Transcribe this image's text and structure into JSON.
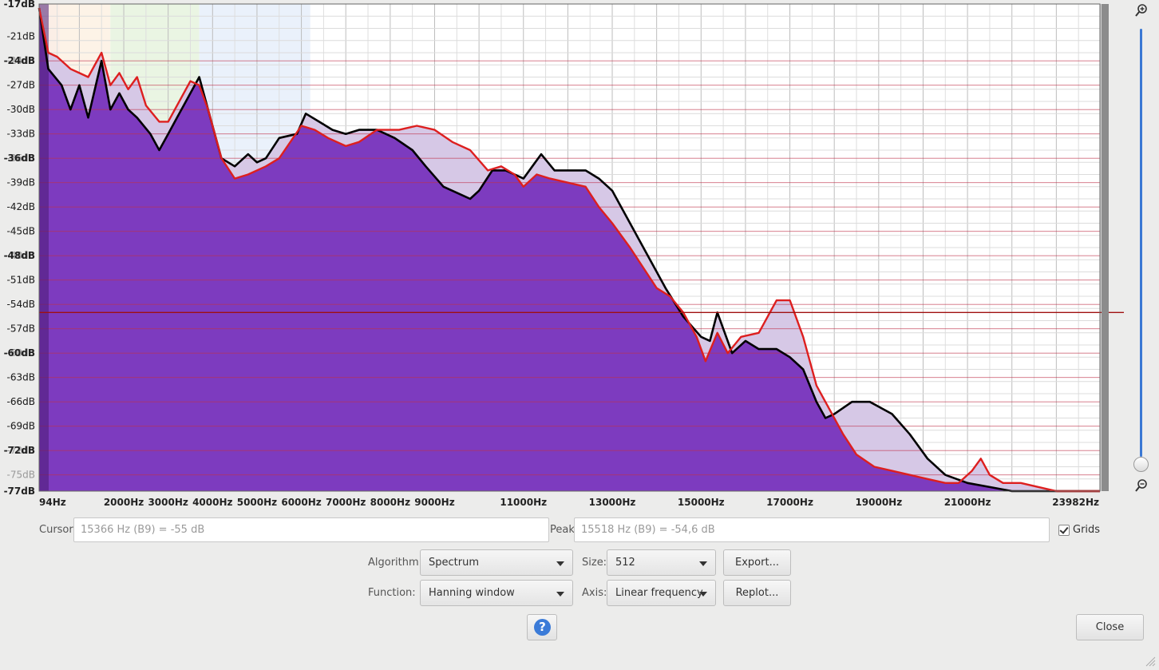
{
  "chart_data": {
    "type": "area",
    "title": "",
    "xlabel": "",
    "ylabel": "",
    "x_range_hz": [
      94,
      23982
    ],
    "y_range_db": [
      -77,
      -17
    ],
    "x_tick_labels": [
      {
        "hz": 94,
        "label": "94Hz"
      },
      {
        "hz": 2000,
        "label": "2000Hz"
      },
      {
        "hz": 3000,
        "label": "3000Hz"
      },
      {
        "hz": 4000,
        "label": "4000Hz"
      },
      {
        "hz": 5000,
        "label": "5000Hz"
      },
      {
        "hz": 6000,
        "label": "6000Hz"
      },
      {
        "hz": 7000,
        "label": "7000Hz"
      },
      {
        "hz": 8000,
        "label": "8000Hz"
      },
      {
        "hz": 9000,
        "label": "9000Hz"
      },
      {
        "hz": 11000,
        "label": "11000Hz"
      },
      {
        "hz": 13000,
        "label": "13000Hz"
      },
      {
        "hz": 15000,
        "label": "15000Hz"
      },
      {
        "hz": 17000,
        "label": "17000Hz"
      },
      {
        "hz": 19000,
        "label": "19000Hz"
      },
      {
        "hz": 21000,
        "label": "21000Hz"
      },
      {
        "hz": 23982,
        "label": "23982Hz"
      }
    ],
    "y_tick_labels": [
      {
        "db": -17,
        "label": "-17dB",
        "style": "bold"
      },
      {
        "db": -21,
        "label": "-21dB",
        "style": "minor"
      },
      {
        "db": -21,
        "label": "-21dB",
        "style": "normal"
      },
      {
        "db": -24,
        "label": "-24dB",
        "style": "minor"
      },
      {
        "db": -24,
        "label": "-24dB",
        "style": "bold"
      },
      {
        "db": -27,
        "label": "-27dB",
        "style": "minor"
      },
      {
        "db": -27,
        "label": "-27dB",
        "style": "normal"
      },
      {
        "db": -30,
        "label": "-30dB",
        "style": "minor"
      },
      {
        "db": -30,
        "label": "-30dB",
        "style": "normal"
      },
      {
        "db": -33,
        "label": "-33dB",
        "style": "minor"
      },
      {
        "db": -33,
        "label": "-33dB",
        "style": "normal"
      },
      {
        "db": -36,
        "label": "-36dB",
        "style": "minor"
      },
      {
        "db": -36,
        "label": "-36dB",
        "style": "bold"
      },
      {
        "db": -39,
        "label": "-39dB",
        "style": "minor"
      },
      {
        "db": -39,
        "label": "-39dB",
        "style": "normal"
      },
      {
        "db": -42,
        "label": "-42dB",
        "style": "minor"
      },
      {
        "db": -42,
        "label": "-42dB",
        "style": "normal"
      },
      {
        "db": -45,
        "label": "-45dB",
        "style": "minor"
      },
      {
        "db": -45,
        "label": "-45dB",
        "style": "normal"
      },
      {
        "db": -48,
        "label": "-48dB",
        "style": "minor"
      },
      {
        "db": -48,
        "label": "-48dB",
        "style": "bold"
      },
      {
        "db": -51,
        "label": "-51dB",
        "style": "minor"
      },
      {
        "db": -51,
        "label": "-51dB",
        "style": "normal"
      },
      {
        "db": -54,
        "label": "-54dB",
        "style": "minor"
      },
      {
        "db": -54,
        "label": "-54dB",
        "style": "normal"
      },
      {
        "db": -57,
        "label": "-57dB",
        "style": "minor"
      },
      {
        "db": -57,
        "label": "-57dB",
        "style": "normal"
      },
      {
        "db": -60,
        "label": "-60dB",
        "style": "minor"
      },
      {
        "db": -60,
        "label": "-60dB",
        "style": "bold"
      },
      {
        "db": -63,
        "label": "-63dB",
        "style": "minor"
      },
      {
        "db": -63,
        "label": "-63dB",
        "style": "normal"
      },
      {
        "db": -66,
        "label": "-66dB",
        "style": "minor"
      },
      {
        "db": -66,
        "label": "-66dB",
        "style": "normal"
      },
      {
        "db": -69,
        "label": "-69dB",
        "style": "minor"
      },
      {
        "db": -69,
        "label": "-69dB",
        "style": "normal"
      },
      {
        "db": -72,
        "label": "-72dB",
        "style": "minor"
      },
      {
        "db": -72,
        "label": "-72dB",
        "style": "bold"
      },
      {
        "db": -75,
        "label": "-75dB",
        "style": "minor"
      },
      {
        "db": -77,
        "label": "-77dB",
        "style": "bold"
      }
    ],
    "grid": true,
    "cursor_hz": 15366,
    "cursor_db": -55,
    "series": [
      {
        "color": "#000000",
        "points": [
          [
            94,
            -17.5
          ],
          [
            300,
            -25
          ],
          [
            600,
            -27
          ],
          [
            800,
            -30
          ],
          [
            1000,
            -27
          ],
          [
            1200,
            -31
          ],
          [
            1500,
            -24
          ],
          [
            1700,
            -30
          ],
          [
            1900,
            -28
          ],
          [
            2100,
            -30
          ],
          [
            2300,
            -31
          ],
          [
            2600,
            -33
          ],
          [
            2800,
            -35
          ],
          [
            3000,
            -33
          ],
          [
            3200,
            -31
          ],
          [
            3500,
            -28
          ],
          [
            3700,
            -26
          ],
          [
            3900,
            -30
          ],
          [
            4200,
            -36
          ],
          [
            4500,
            -37
          ],
          [
            4800,
            -35.5
          ],
          [
            5000,
            -36.5
          ],
          [
            5200,
            -36
          ],
          [
            5500,
            -33.5
          ],
          [
            5900,
            -33
          ],
          [
            6100,
            -30.5
          ],
          [
            6400,
            -31.5
          ],
          [
            6700,
            -32.5
          ],
          [
            7000,
            -33
          ],
          [
            7300,
            -32.5
          ],
          [
            7700,
            -32.5
          ],
          [
            8100,
            -33.5
          ],
          [
            8500,
            -35
          ],
          [
            8800,
            -37
          ],
          [
            9200,
            -39.5
          ],
          [
            9600,
            -40.5
          ],
          [
            9800,
            -41
          ],
          [
            10000,
            -40
          ],
          [
            10300,
            -37.5
          ],
          [
            10600,
            -37.5
          ],
          [
            11000,
            -38.5
          ],
          [
            11200,
            -37
          ],
          [
            11400,
            -35.5
          ],
          [
            11700,
            -37.5
          ],
          [
            12100,
            -37.5
          ],
          [
            12400,
            -37.5
          ],
          [
            12700,
            -38.5
          ],
          [
            13000,
            -40
          ],
          [
            13300,
            -43
          ],
          [
            13600,
            -46
          ],
          [
            13900,
            -49
          ],
          [
            14200,
            -52
          ],
          [
            14600,
            -55.5
          ],
          [
            15000,
            -58
          ],
          [
            15200,
            -58.5
          ],
          [
            15366,
            -55
          ],
          [
            15500,
            -57
          ],
          [
            15700,
            -60
          ],
          [
            16000,
            -58.5
          ],
          [
            16300,
            -59.5
          ],
          [
            16700,
            -59.5
          ],
          [
            17000,
            -60.5
          ],
          [
            17300,
            -62
          ],
          [
            17600,
            -66
          ],
          [
            17800,
            -68
          ],
          [
            18000,
            -67.5
          ],
          [
            18400,
            -66
          ],
          [
            18800,
            -66
          ],
          [
            19300,
            -67.5
          ],
          [
            19700,
            -70
          ],
          [
            20100,
            -73
          ],
          [
            20500,
            -75
          ],
          [
            21000,
            -76
          ],
          [
            21500,
            -76.5
          ],
          [
            22000,
            -77
          ],
          [
            22600,
            -77
          ],
          [
            23300,
            -77
          ],
          [
            23982,
            -77
          ]
        ]
      },
      {
        "color": "#dd1f1f",
        "points": [
          [
            94,
            -17.5
          ],
          [
            300,
            -23
          ],
          [
            500,
            -23.5
          ],
          [
            800,
            -25
          ],
          [
            1000,
            -25.5
          ],
          [
            1200,
            -26
          ],
          [
            1500,
            -23
          ],
          [
            1700,
            -27
          ],
          [
            1900,
            -25.5
          ],
          [
            2100,
            -27.5
          ],
          [
            2300,
            -26
          ],
          [
            2500,
            -29.5
          ],
          [
            2800,
            -31.5
          ],
          [
            3000,
            -31.5
          ],
          [
            3200,
            -29.5
          ],
          [
            3500,
            -26.5
          ],
          [
            3700,
            -27
          ],
          [
            3900,
            -30
          ],
          [
            4200,
            -36
          ],
          [
            4500,
            -38.5
          ],
          [
            4800,
            -38
          ],
          [
            5200,
            -37
          ],
          [
            5500,
            -36
          ],
          [
            6000,
            -32
          ],
          [
            6300,
            -32.5
          ],
          [
            6600,
            -33.5
          ],
          [
            7000,
            -34.5
          ],
          [
            7300,
            -34
          ],
          [
            7700,
            -32.5
          ],
          [
            8200,
            -32.5
          ],
          [
            8600,
            -32
          ],
          [
            9000,
            -32.5
          ],
          [
            9400,
            -34
          ],
          [
            9800,
            -35
          ],
          [
            10200,
            -37.5
          ],
          [
            10500,
            -37
          ],
          [
            10800,
            -38
          ],
          [
            11000,
            -39.5
          ],
          [
            11300,
            -38
          ],
          [
            11600,
            -38.5
          ],
          [
            12000,
            -39
          ],
          [
            12400,
            -39.5
          ],
          [
            12700,
            -42
          ],
          [
            13000,
            -44
          ],
          [
            13400,
            -47
          ],
          [
            13700,
            -49.5
          ],
          [
            14000,
            -52
          ],
          [
            14300,
            -53
          ],
          [
            14600,
            -55
          ],
          [
            14900,
            -58
          ],
          [
            15100,
            -61
          ],
          [
            15366,
            -57.5
          ],
          [
            15600,
            -60
          ],
          [
            15900,
            -58
          ],
          [
            16300,
            -57.5
          ],
          [
            16700,
            -53.5
          ],
          [
            17000,
            -53.5
          ],
          [
            17300,
            -58
          ],
          [
            17600,
            -64
          ],
          [
            17900,
            -67
          ],
          [
            18200,
            -70
          ],
          [
            18500,
            -72.5
          ],
          [
            18900,
            -74
          ],
          [
            19300,
            -74.5
          ],
          [
            19700,
            -75
          ],
          [
            20100,
            -75.5
          ],
          [
            20500,
            -76
          ],
          [
            20800,
            -76
          ],
          [
            21100,
            -74.5
          ],
          [
            21300,
            -73
          ],
          [
            21500,
            -75
          ],
          [
            21800,
            -76
          ],
          [
            22200,
            -76
          ],
          [
            22600,
            -76.5
          ],
          [
            23000,
            -77
          ],
          [
            23400,
            -77
          ],
          [
            23982,
            -77
          ]
        ]
      }
    ]
  },
  "fields": {
    "cursor_label": "Cursor:",
    "cursor_value": "15366 Hz (B9) = -55 dB",
    "peak_label": "Peak:",
    "peak_value": "15518 Hz (B9) = -54,6 dB",
    "grids_label": "Grids",
    "grids_checked": true
  },
  "controls": {
    "algorithm_label": "Algorithm:",
    "algorithm_value": "Spectrum",
    "size_label": "Size:",
    "size_value": "512",
    "export_button": "Export...",
    "function_label": "Function:",
    "function_value": "Hanning window",
    "axis_label": "Axis:",
    "axis_value": "Linear frequency",
    "replot_button": "Replot...",
    "help_glyph": "?",
    "close_button": "Close"
  },
  "icons": [
    "zoom-in-icon",
    "zoom-out-icon",
    "help-icon",
    "resize-grip-icon",
    "dropdown-arrow-icon",
    "checkbox-check-icon"
  ],
  "colors": {
    "fill": "#7d3bbf",
    "fill_light": "#d6c8e6",
    "black_series": "#000000",
    "red_series": "#dd1f1f",
    "cursor_line": "#a01010",
    "accent": "#3a78d4"
  }
}
